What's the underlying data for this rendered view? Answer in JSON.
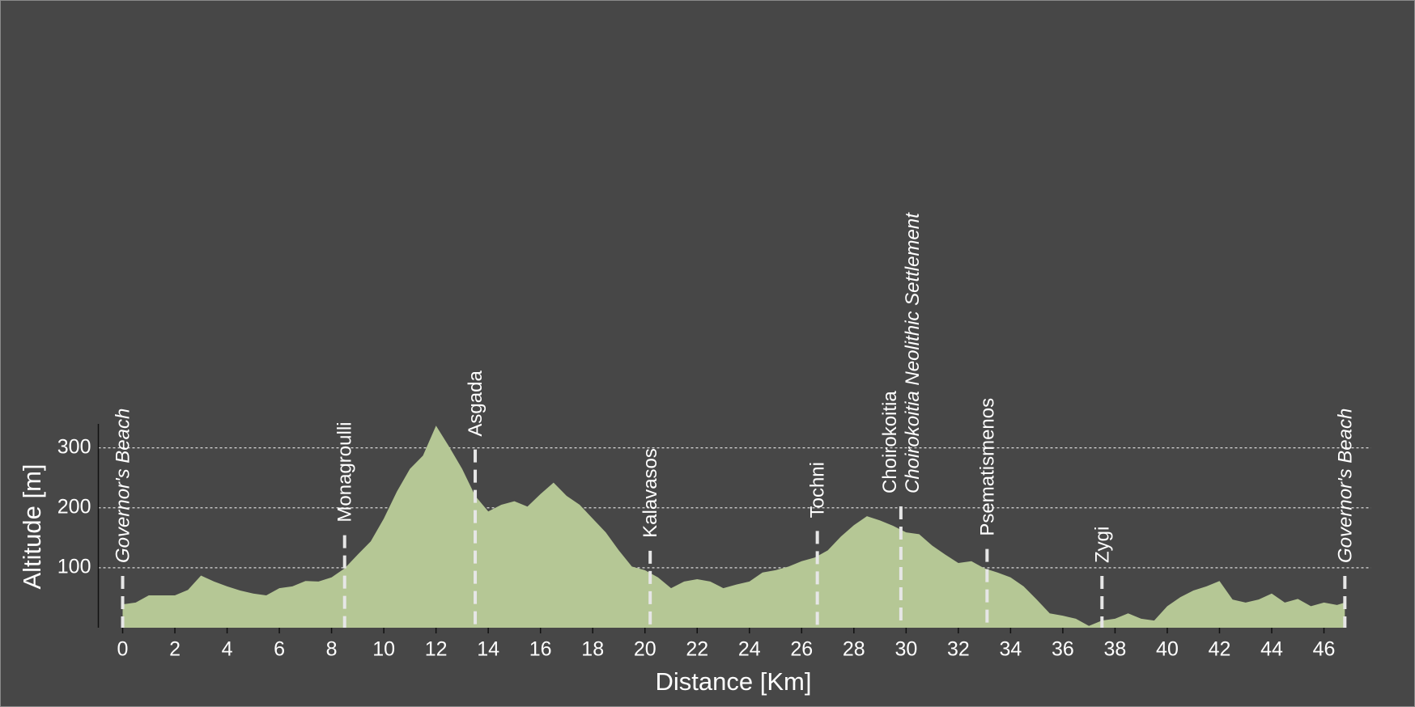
{
  "chart_data": {
    "type": "area",
    "x_label": "Distance [Km]",
    "y_label": "Altitude [m]",
    "color": "#b5c795",
    "grid": true,
    "xlim": [
      -0.93,
      47.8
    ],
    "ylim": [
      0,
      340
    ],
    "xticks": [
      0,
      2,
      4,
      6,
      8,
      10,
      12,
      14,
      16,
      18,
      20,
      22,
      24,
      26,
      28,
      30,
      32,
      34,
      36,
      38,
      40,
      42,
      44,
      46
    ],
    "yticks": [
      100,
      200,
      300
    ],
    "x": [
      0,
      0.5,
      1,
      1.5,
      2,
      2.5,
      3,
      3.5,
      4,
      4.5,
      5,
      5.5,
      6,
      6.5,
      7,
      7.5,
      8,
      8.5,
      9,
      9.5,
      10,
      10.5,
      11,
      11.5,
      12,
      12.5,
      13,
      13.5,
      14,
      14.5,
      15,
      15.5,
      16,
      16.5,
      17,
      17.5,
      18,
      18.5,
      19,
      19.5,
      20,
      20.5,
      21,
      21.5,
      22,
      22.5,
      23,
      23.5,
      24,
      24.5,
      25,
      25.5,
      26,
      26.5,
      27,
      27.5,
      28,
      28.5,
      29,
      29.5,
      30,
      30.5,
      31,
      31.5,
      32,
      32.5,
      33,
      33.5,
      34,
      34.5,
      35,
      35.5,
      36,
      36.5,
      37,
      37.5,
      38,
      38.5,
      39,
      39.5,
      40,
      40.5,
      41,
      41.5,
      42,
      42.5,
      43,
      43.5,
      44,
      44.5,
      45,
      45.5,
      46,
      46.5,
      46.8
    ],
    "values": [
      39,
      42,
      54,
      54,
      54,
      63,
      87,
      77,
      69,
      62,
      57,
      54,
      66,
      69,
      78,
      77,
      84,
      99,
      122,
      144,
      182,
      227,
      265,
      287,
      337,
      302,
      265,
      220,
      194,
      205,
      211,
      202,
      223,
      242,
      220,
      205,
      182,
      159,
      129,
      102,
      96,
      84,
      66,
      77,
      81,
      77,
      66,
      72,
      77,
      92,
      96,
      102,
      111,
      117,
      129,
      152,
      171,
      186,
      179,
      170,
      159,
      156,
      137,
      122,
      108,
      111,
      99,
      92,
      84,
      69,
      47,
      24,
      20,
      15,
      3,
      12,
      15,
      24,
      15,
      12,
      36,
      51,
      62,
      69,
      78,
      47,
      42,
      47,
      57,
      42,
      48,
      36,
      42,
      38,
      42
    ],
    "waypoints": [
      {
        "x": 0,
        "label": "Governor's Beach",
        "italic": true
      },
      {
        "x": 8.5,
        "label": "Monagroulli"
      },
      {
        "x": 13.5,
        "label": "Asgada"
      },
      {
        "x": 20.2,
        "label": "Kalavasos"
      },
      {
        "x": 26.6,
        "label": "Tochni"
      },
      {
        "x": 29.8,
        "label": "Choirokoitia",
        "sublabel": "Choirokoitia Neolithic Settlement"
      },
      {
        "x": 33.1,
        "label": "Psematismenos"
      },
      {
        "x": 37.5,
        "label": "Zygi"
      },
      {
        "x": 46.8,
        "label": "Governor's Beach",
        "italic": true
      }
    ]
  }
}
